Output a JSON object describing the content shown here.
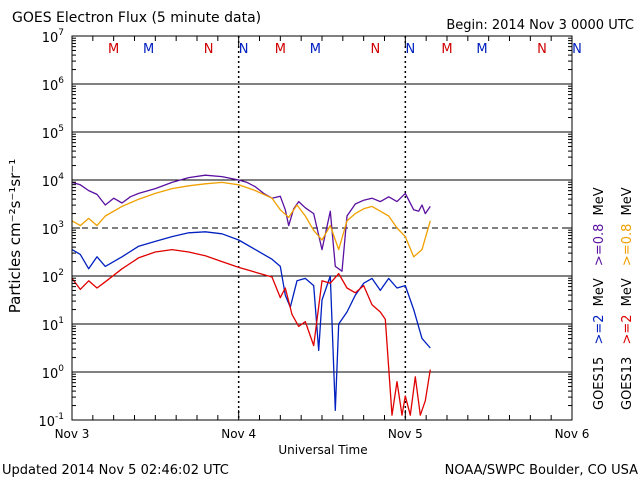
{
  "chart_data": {
    "type": "line",
    "title": "GOES Electron Flux (5 minute data)",
    "begin_label": "Begin: 2014 Nov 3 0000 UTC",
    "xlabel": "Universal Time",
    "ylabel": "Particles cm⁻²s⁻¹sr⁻¹",
    "x_ticks": [
      "Nov 3",
      "Nov 4",
      "Nov 5",
      "Nov 6"
    ],
    "x_range_days": [
      0,
      3
    ],
    "ylim_log10": [
      -1,
      7
    ],
    "y_ticks": [
      {
        "base": "10",
        "exp": "7"
      },
      {
        "base": "10",
        "exp": "6"
      },
      {
        "base": "10",
        "exp": "5"
      },
      {
        "base": "10",
        "exp": "4"
      },
      {
        "base": "10",
        "exp": "3"
      },
      {
        "base": "10",
        "exp": "2"
      },
      {
        "base": "10",
        "exp": "1"
      },
      {
        "base": "10",
        "exp": "0"
      },
      {
        "base": "10",
        "exp": "-1"
      }
    ],
    "threshold_log10": 3,
    "mn_markers": [
      {
        "label": "M",
        "day": 0.25,
        "color": "#d00000"
      },
      {
        "label": "M",
        "day": 0.46,
        "color": "#0020c0"
      },
      {
        "label": "N",
        "day": 0.82,
        "color": "#d00000"
      },
      {
        "label": "N",
        "day": 1.03,
        "color": "#0020c0"
      },
      {
        "label": "M",
        "day": 1.25,
        "color": "#d00000"
      },
      {
        "label": "M",
        "day": 1.46,
        "color": "#0020c0"
      },
      {
        "label": "N",
        "day": 1.82,
        "color": "#d00000"
      },
      {
        "label": "N",
        "day": 2.03,
        "color": "#0020c0"
      },
      {
        "label": "M",
        "day": 2.25,
        "color": "#d00000"
      },
      {
        "label": "M",
        "day": 2.46,
        "color": "#0020c0"
      },
      {
        "label": "N",
        "day": 2.82,
        "color": "#d00000"
      },
      {
        "label": "N",
        "day": 3.03,
        "color": "#0020c0"
      }
    ],
    "legend": {
      "goes15": {
        "label": "GOES15",
        "ge2": ">=2",
        "ge08": ">=0.8",
        "unit": "MeV",
        "ge2_color": "#0020c0",
        "ge08_color": "#6a1aa0"
      },
      "goes13": {
        "label": "GOES13",
        "ge2": ">=2",
        "ge08": ">=0.8",
        "unit": "MeV",
        "ge2_color": "#e00000",
        "ge08_color": "#f0a000"
      }
    },
    "series": [
      {
        "name": "GOES15 >=0.8 MeV",
        "color": "#5a10a0",
        "x": [
          0,
          0.05,
          0.1,
          0.15,
          0.2,
          0.25,
          0.3,
          0.35,
          0.4,
          0.5,
          0.6,
          0.7,
          0.8,
          0.9,
          1.0,
          1.05,
          1.1,
          1.15,
          1.2,
          1.25,
          1.28,
          1.3,
          1.33,
          1.36,
          1.4,
          1.45,
          1.5,
          1.55,
          1.58,
          1.62,
          1.65,
          1.7,
          1.75,
          1.8,
          1.85,
          1.9,
          1.95,
          2.0,
          2.05,
          2.08,
          2.1,
          2.12,
          2.15
        ],
        "y": [
          3.95,
          3.9,
          3.78,
          3.7,
          3.48,
          3.62,
          3.52,
          3.65,
          3.72,
          3.82,
          3.95,
          4.05,
          4.1,
          4.07,
          4.0,
          3.95,
          3.86,
          3.72,
          3.62,
          3.66,
          3.38,
          3.05,
          3.4,
          3.55,
          3.42,
          3.3,
          2.55,
          3.35,
          2.2,
          2.1,
          3.25,
          3.5,
          3.58,
          3.62,
          3.55,
          3.65,
          3.55,
          3.72,
          3.38,
          3.35,
          3.48,
          3.3,
          3.45
        ]
      },
      {
        "name": "GOES13 >=0.8 MeV",
        "color": "#f0a000",
        "x": [
          0,
          0.05,
          0.1,
          0.15,
          0.2,
          0.3,
          0.4,
          0.5,
          0.6,
          0.7,
          0.8,
          0.9,
          1.0,
          1.1,
          1.2,
          1.25,
          1.3,
          1.35,
          1.4,
          1.45,
          1.5,
          1.55,
          1.6,
          1.65,
          1.7,
          1.75,
          1.8,
          1.85,
          1.9,
          1.95,
          2.0,
          2.05,
          2.1,
          2.15
        ],
        "y": [
          3.15,
          3.05,
          3.2,
          3.05,
          3.25,
          3.45,
          3.6,
          3.72,
          3.82,
          3.88,
          3.92,
          3.95,
          3.9,
          3.78,
          3.62,
          3.38,
          3.22,
          3.48,
          3.25,
          2.95,
          2.75,
          3.05,
          2.55,
          3.15,
          3.3,
          3.4,
          3.45,
          3.35,
          3.25,
          3.0,
          2.82,
          2.4,
          2.55,
          3.15
        ]
      },
      {
        "name": "GOES15 >=2 MeV",
        "color": "#0020c0",
        "x": [
          0,
          0.05,
          0.1,
          0.15,
          0.2,
          0.3,
          0.4,
          0.5,
          0.6,
          0.7,
          0.8,
          0.9,
          1.0,
          1.1,
          1.2,
          1.25,
          1.28,
          1.31,
          1.35,
          1.4,
          1.45,
          1.48,
          1.5,
          1.55,
          1.58,
          1.6,
          1.65,
          1.7,
          1.75,
          1.8,
          1.85,
          1.9,
          1.95,
          2.0,
          2.05,
          2.1,
          2.15
        ],
        "y": [
          2.55,
          2.45,
          2.15,
          2.4,
          2.2,
          2.4,
          2.62,
          2.72,
          2.82,
          2.9,
          2.92,
          2.88,
          2.75,
          2.55,
          2.35,
          2.2,
          1.6,
          1.35,
          1.9,
          1.95,
          1.8,
          0.45,
          1.5,
          2.0,
          -0.8,
          1.0,
          1.25,
          1.6,
          1.85,
          1.95,
          1.7,
          1.95,
          1.75,
          1.8,
          1.3,
          0.7,
          0.5
        ]
      },
      {
        "name": "GOES13 >=2 MeV",
        "color": "#e00000",
        "x": [
          0,
          0.05,
          0.1,
          0.15,
          0.2,
          0.3,
          0.4,
          0.5,
          0.6,
          0.7,
          0.8,
          0.9,
          1.0,
          1.1,
          1.2,
          1.25,
          1.28,
          1.32,
          1.36,
          1.4,
          1.45,
          1.5,
          1.55,
          1.6,
          1.65,
          1.7,
          1.75,
          1.8,
          1.85,
          1.88,
          1.92,
          1.95,
          1.98,
          2.0,
          2.03,
          2.06,
          2.09,
          2.12,
          2.15
        ],
        "y": [
          1.95,
          1.72,
          1.9,
          1.75,
          1.88,
          2.15,
          2.38,
          2.5,
          2.55,
          2.5,
          2.42,
          2.3,
          2.18,
          2.08,
          1.98,
          1.55,
          1.75,
          1.2,
          0.95,
          1.05,
          0.55,
          1.9,
          1.85,
          2.05,
          1.75,
          1.65,
          1.8,
          1.4,
          1.25,
          1.1,
          -0.9,
          -0.2,
          -0.9,
          -0.5,
          -0.9,
          -0.1,
          -0.9,
          -0.6,
          0.05
        ]
      }
    ]
  },
  "footer": {
    "updated": "Updated 2014 Nov  5 02:46:02 UTC",
    "credit": "NOAA/SWPC Boulder, CO USA"
  }
}
